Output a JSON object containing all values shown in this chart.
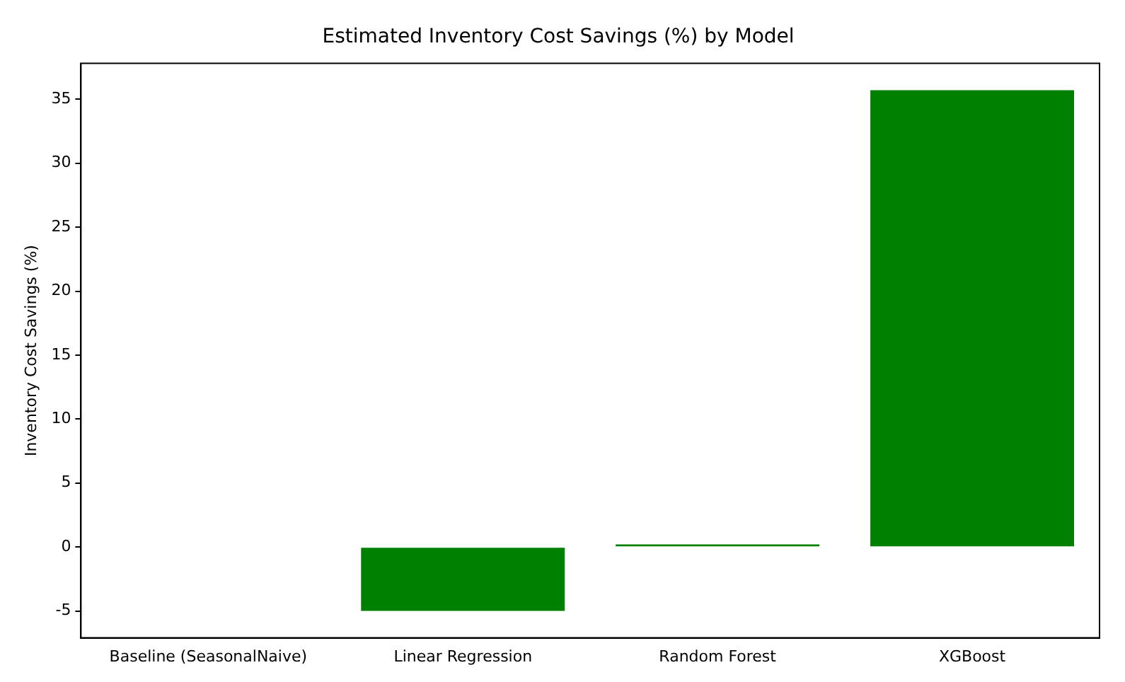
{
  "chart_data": {
    "type": "bar",
    "title": "Estimated Inventory Cost Savings (%) by Model",
    "ylabel": "Inventory Cost Savings (%)",
    "categories": [
      "Baseline (SeasonalNaive)",
      "Linear Regression",
      "Random Forest",
      "XGBoost"
    ],
    "values": [
      0,
      -5.0,
      0.2,
      35.7
    ],
    "color": "#008000",
    "ylim": [
      -7.1,
      37.8
    ],
    "yticks": [
      -5,
      0,
      5,
      10,
      15,
      20,
      25,
      30,
      35
    ],
    "grid": false,
    "legend": false
  }
}
